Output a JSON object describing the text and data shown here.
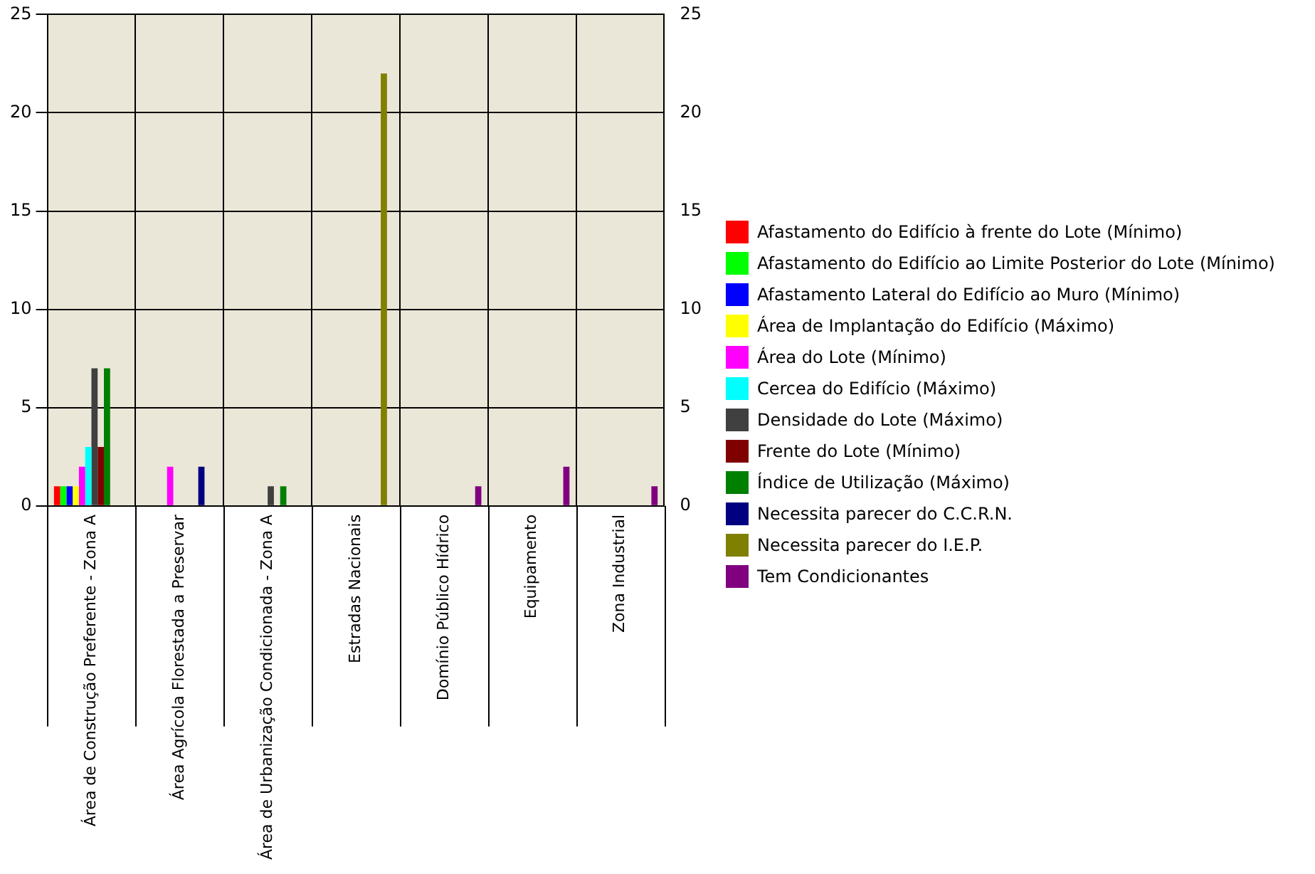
{
  "chart_data": {
    "type": "bar",
    "categories": [
      "Área de Construção Preferente - Zona A",
      "Área Agrícola Florestada a Preservar",
      "Área de Urbanização Condicionada - Zona A",
      "Estradas Nacionais",
      "Domínio Público Hídrico",
      "Equipamento",
      "Zona Industrial"
    ],
    "series": [
      {
        "name": "Afastamento do Edifício à frente do Lote (Mínimo)",
        "color": "#ff0000",
        "values": [
          1,
          null,
          null,
          null,
          null,
          null,
          null
        ]
      },
      {
        "name": "Afastamento do Edifício ao Limite Posterior do Lote (Mínimo)",
        "color": "#00ff00",
        "values": [
          1,
          null,
          null,
          null,
          null,
          null,
          null
        ]
      },
      {
        "name": "Afastamento Lateral do Edifício ao Muro (Mínimo)",
        "color": "#0000ff",
        "values": [
          1,
          null,
          null,
          null,
          null,
          null,
          null
        ]
      },
      {
        "name": "Área de Implantação do Edifício (Máximo)",
        "color": "#ffff00",
        "values": [
          1,
          null,
          null,
          null,
          null,
          null,
          null
        ]
      },
      {
        "name": "Área do Lote (Mínimo)",
        "color": "#ff00ff",
        "values": [
          2,
          2,
          null,
          null,
          null,
          null,
          null
        ]
      },
      {
        "name": "Cercea do Edifício (Máximo)",
        "color": "#00ffff",
        "values": [
          3,
          null,
          null,
          null,
          null,
          null,
          null
        ]
      },
      {
        "name": "Densidade do Lote (Máximo)",
        "color": "#404040",
        "values": [
          7,
          null,
          1,
          null,
          null,
          null,
          null
        ]
      },
      {
        "name": "Frente do Lote (Mínimo)",
        "color": "#800000",
        "values": [
          3,
          null,
          null,
          null,
          null,
          null,
          null
        ]
      },
      {
        "name": "Índice de Utilização (Máximo)",
        "color": "#008000",
        "values": [
          7,
          null,
          1,
          null,
          null,
          null,
          null
        ]
      },
      {
        "name": "Necessita parecer do C.C.R.N.",
        "color": "#000080",
        "values": [
          null,
          2,
          null,
          null,
          null,
          null,
          null
        ]
      },
      {
        "name": "Necessita parecer do I.E.P.",
        "color": "#808000",
        "values": [
          null,
          null,
          null,
          22,
          null,
          null,
          null
        ]
      },
      {
        "name": "Tem Condicionantes",
        "color": "#800080",
        "values": [
          null,
          null,
          null,
          null,
          1,
          2,
          1
        ]
      }
    ],
    "ylim": [
      0,
      25
    ],
    "yticks": [
      0,
      5,
      10,
      15,
      20,
      25
    ],
    "y2lim": [
      0,
      25
    ],
    "y2ticks": [
      0,
      5,
      10,
      15,
      20,
      25
    ],
    "grid": true,
    "legend": "right"
  }
}
